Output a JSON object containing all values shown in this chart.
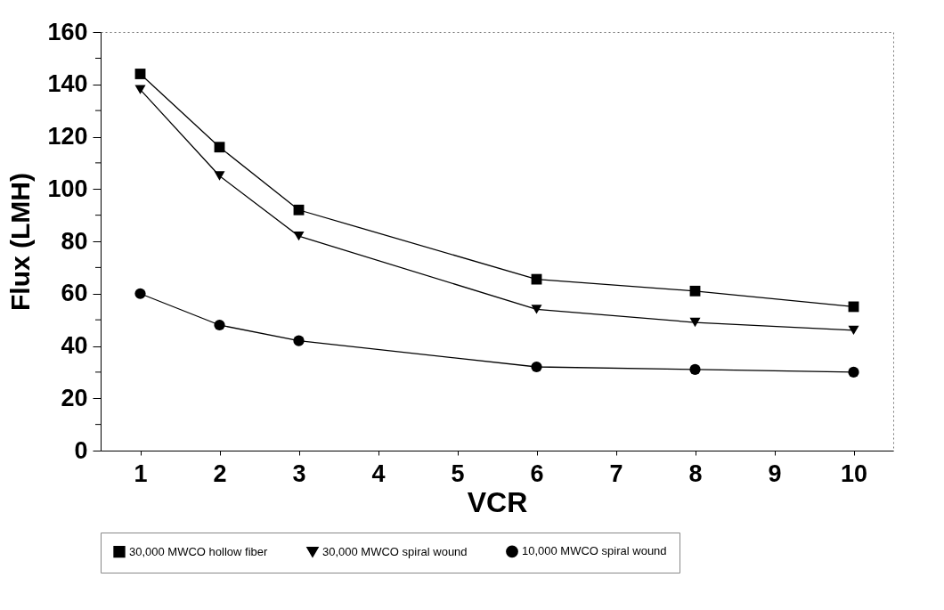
{
  "chart_data": {
    "type": "line",
    "xlabel": "VCR",
    "ylabel": "Flux (LMH)",
    "xlim": [
      0.5,
      10.5
    ],
    "xticks": [
      1,
      2,
      3,
      4,
      5,
      6,
      7,
      8,
      9,
      10
    ],
    "ylim": [
      0,
      160
    ],
    "yticks": [
      0,
      {
        "value": 10,
        "label": null
      },
      20,
      {
        "value": 30,
        "label": null
      },
      40,
      {
        "value": 50,
        "label": null
      },
      60,
      {
        "value": 70,
        "label": null
      },
      80,
      {
        "value": 90,
        "label": null
      },
      100,
      {
        "value": 110,
        "label": null
      },
      120,
      {
        "value": 130,
        "label": null
      },
      140,
      {
        "value": 150,
        "label": null
      },
      160
    ],
    "x": [
      1,
      2,
      3,
      6,
      8,
      10
    ],
    "grid": false,
    "legend": "bottom",
    "series": [
      {
        "name": "30,000 MWCO hollow fiber",
        "color": "#000000",
        "marker": "square",
        "values": [
          144,
          116,
          92,
          65.5,
          61,
          55
        ]
      },
      {
        "name": "30,000 MWCO spiral wound",
        "color": "#000000",
        "marker": "triangle",
        "values": [
          138,
          105,
          82,
          54,
          49,
          46
        ]
      },
      {
        "name": "10,000 MWCO spiral wound",
        "color": "#000000",
        "marker": "circle",
        "values": [
          60,
          48,
          42,
          32,
          31,
          30
        ]
      }
    ]
  }
}
